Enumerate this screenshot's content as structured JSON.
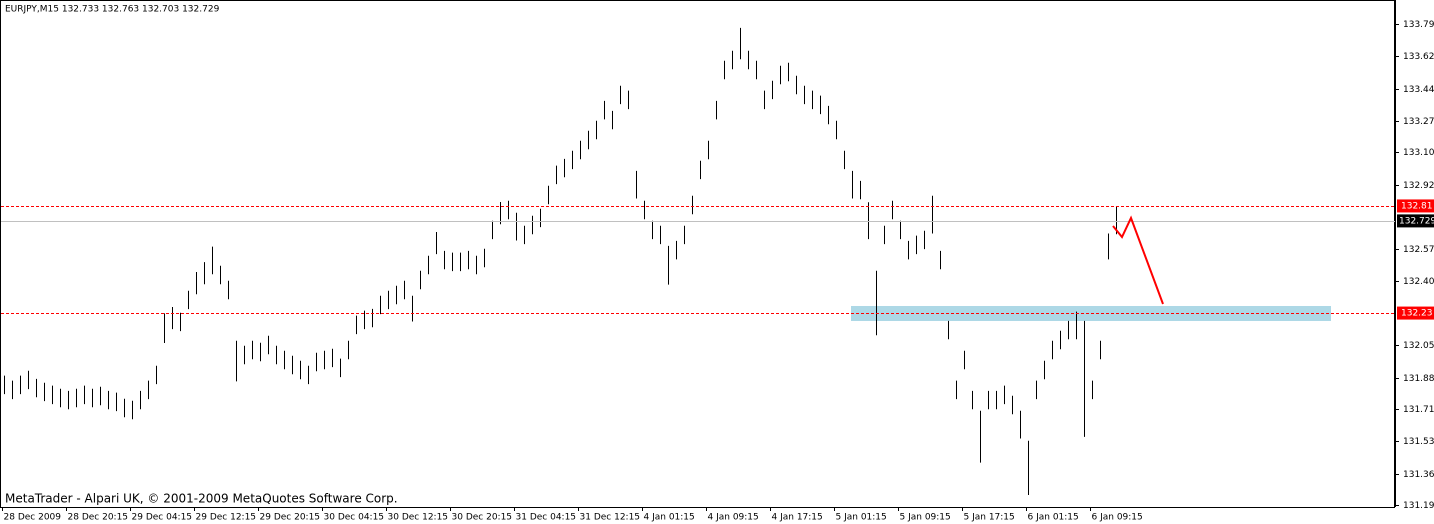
{
  "chart_data": {
    "type": "ohlc",
    "title": "EURJPY,M15  132.733 132.763 132.703 132.729",
    "footer": "MetaTrader - Alpari UK, © 2001-2009 MetaQuotes Software Corp.",
    "x_labels": [
      "28 Dec 2009",
      "28 Dec 20:15",
      "29 Dec 04:15",
      "29 Dec 12:15",
      "29 Dec 20:15",
      "30 Dec 04:15",
      "30 Dec 12:15",
      "30 Dec 20:15",
      "31 Dec 04:15",
      "31 Dec 12:15",
      "4 Jan 01:15",
      "4 Jan 09:15",
      "4 Jan 17:15",
      "5 Jan 01:15",
      "5 Jan 09:15",
      "5 Jan 17:15",
      "6 Jan 01:15",
      "6 Jan 09:15"
    ],
    "high": [
      131.891,
      131.864,
      131.891,
      131.918,
      131.874,
      131.853,
      131.837,
      131.82,
      131.809,
      131.82,
      131.837,
      131.82,
      131.831,
      131.809,
      131.799,
      131.766,
      131.755,
      131.809,
      131.864,
      131.945,
      132.228,
      132.263,
      132.232,
      132.351,
      132.452,
      132.506,
      132.59,
      132.486,
      132.405,
      132.08,
      132.053,
      132.08,
      132.069,
      132.107,
      132.053,
      132.026,
      131.999,
      131.972,
      131.945,
      132.015,
      132.026,
      132.037,
      131.983,
      132.08,
      132.216,
      132.243,
      132.253,
      132.324,
      132.351,
      132.378,
      132.405,
      132.324,
      132.459,
      132.54,
      132.669,
      132.567,
      132.557,
      132.557,
      132.567,
      132.54,
      132.578,
      132.73,
      132.831,
      132.838,
      132.773,
      132.703,
      132.757,
      132.795,
      132.919,
      133.028,
      133.065,
      133.109,
      133.163,
      133.217,
      133.271,
      133.379,
      133.325,
      133.461,
      133.434,
      133.0,
      132.838,
      132.73,
      132.703,
      132.594,
      132.621,
      132.703,
      132.865,
      133.055,
      133.163,
      133.379,
      133.596,
      133.65,
      133.774,
      133.65,
      133.596,
      133.434,
      133.488,
      133.569,
      133.585,
      133.515,
      133.461,
      133.434,
      133.407,
      133.352,
      133.271,
      133.109,
      133.0,
      132.946,
      132.83,
      132.459,
      132.703,
      132.838,
      132.73,
      132.621,
      132.649,
      132.676,
      132.865,
      132.567,
      132.188,
      131.864,
      132.026,
      131.809,
      131.701,
      131.809,
      131.809,
      131.837,
      131.782,
      131.701,
      131.539,
      131.864,
      131.972,
      132.08,
      132.134,
      132.188,
      132.238,
      132.188,
      131.864,
      132.08,
      132.661,
      132.81
    ],
    "low": [
      131.791,
      131.764,
      131.791,
      131.818,
      131.774,
      131.753,
      131.737,
      131.72,
      131.709,
      131.72,
      131.737,
      131.72,
      131.731,
      131.709,
      131.699,
      131.666,
      131.655,
      131.709,
      131.764,
      131.845,
      132.068,
      132.143,
      132.132,
      132.251,
      132.332,
      132.386,
      132.44,
      132.386,
      132.305,
      131.86,
      131.953,
      131.98,
      131.969,
      132.007,
      131.953,
      131.926,
      131.899,
      131.872,
      131.845,
      131.915,
      131.926,
      131.937,
      131.883,
      131.98,
      132.116,
      132.143,
      132.153,
      132.224,
      132.251,
      132.278,
      132.305,
      132.184,
      132.359,
      132.44,
      132.549,
      132.467,
      132.457,
      132.457,
      132.467,
      132.44,
      132.478,
      132.63,
      132.711,
      132.738,
      132.623,
      132.603,
      132.657,
      132.695,
      132.819,
      132.928,
      132.965,
      133.009,
      133.063,
      133.117,
      133.171,
      133.279,
      133.225,
      133.361,
      133.334,
      132.85,
      132.738,
      132.63,
      132.603,
      132.384,
      132.521,
      132.603,
      132.765,
      132.955,
      133.063,
      133.279,
      133.496,
      133.55,
      133.604,
      133.55,
      133.496,
      133.334,
      133.388,
      133.469,
      133.485,
      133.415,
      133.361,
      133.334,
      133.307,
      133.252,
      133.171,
      133.009,
      132.85,
      132.846,
      132.63,
      132.11,
      132.603,
      132.738,
      132.63,
      132.521,
      132.549,
      132.576,
      132.661,
      132.467,
      132.088,
      131.764,
      131.926,
      131.709,
      131.42,
      131.709,
      131.709,
      131.737,
      131.682,
      131.551,
      131.245,
      131.764,
      131.872,
      131.98,
      132.034,
      132.088,
      132.088,
      131.56,
      131.764,
      131.98,
      132.521,
      132.657
    ],
    "ylim": [
      131.18,
      133.925
    ],
    "yticks": [
      133.795,
      {
        "value": 133.62,
        "label": "133.620"
      },
      133.445,
      {
        "value": 133.27,
        "label": "133.270"
      },
      {
        "value": 133.1,
        "label": "133.100"
      },
      132.925,
      132.575,
      132.405,
      132.055,
      {
        "value": 131.88,
        "label": "131.880"
      },
      {
        "value": 131.71,
        "label": "131.710"
      },
      131.535,
      {
        "value": 131.36,
        "label": "131.360"
      },
      {
        "value": 131.19,
        "label": "131.190"
      }
    ],
    "levels": [
      {
        "value": 132.81,
        "label": "132.81",
        "color": "#ff0000"
      },
      {
        "value": 132.23,
        "label": "132.23",
        "color": "#ff0000"
      }
    ],
    "current_price": {
      "value": 132.729,
      "label": "132.729"
    },
    "bar_color": "#000000"
  }
}
